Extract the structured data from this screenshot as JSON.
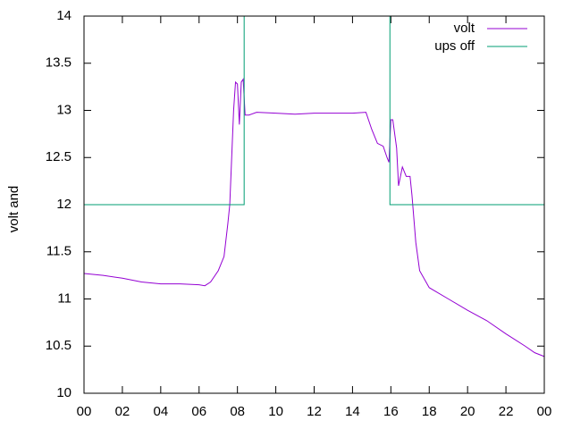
{
  "chart_data": {
    "type": "line",
    "ylabel": "volt and",
    "xlim": [
      0,
      24
    ],
    "xticks": [
      {
        "value": 0,
        "label": "00"
      },
      {
        "value": 2,
        "label": "02"
      },
      {
        "value": 4,
        "label": "04"
      },
      {
        "value": 6,
        "label": "06"
      },
      {
        "value": 8,
        "label": "08"
      },
      10,
      12,
      14,
      16,
      18,
      20,
      22,
      {
        "value": 24,
        "label": "00"
      }
    ],
    "ylim": [
      10,
      14
    ],
    "yticks": [
      10,
      10.5,
      11,
      11.5,
      12,
      12.5,
      13,
      13.5,
      14
    ],
    "legend": "top-right",
    "series": [
      {
        "name": "volt",
        "color": "#9400d3",
        "x": [
          0,
          1,
          2,
          2.5,
          3,
          4,
          5,
          6,
          6.3,
          6.6,
          7,
          7.3,
          7.5,
          7.6,
          7.7,
          7.8,
          7.9,
          8.0,
          8.1,
          8.2,
          8.3,
          8.4,
          8.6,
          9,
          10,
          11,
          12,
          13,
          14,
          14.7,
          15,
          15.3,
          15.6,
          15.8,
          15.9,
          16.0,
          16.1,
          16.3,
          16.4,
          16.6,
          16.8,
          17.0,
          17.1,
          17.3,
          17.5,
          18,
          19,
          20,
          21,
          22,
          23,
          23.5,
          24
        ],
        "values": [
          11.27,
          11.25,
          11.22,
          11.2,
          11.18,
          11.16,
          11.16,
          11.15,
          11.14,
          11.18,
          11.3,
          11.45,
          11.8,
          12.0,
          12.5,
          13.0,
          13.3,
          13.28,
          12.85,
          13.3,
          13.33,
          12.95,
          12.95,
          12.98,
          12.97,
          12.96,
          12.97,
          12.97,
          12.97,
          12.98,
          12.8,
          12.65,
          12.62,
          12.5,
          12.45,
          12.9,
          12.9,
          12.6,
          12.2,
          12.4,
          12.3,
          12.3,
          12.1,
          11.6,
          11.3,
          11.12,
          11.0,
          10.88,
          10.77,
          10.63,
          10.5,
          10.43,
          10.39
        ]
      },
      {
        "name": "ups off",
        "color": "#009e73",
        "x": [
          0,
          8.35,
          8.35,
          15.95,
          15.95,
          24
        ],
        "values": [
          12,
          12,
          14,
          14,
          12,
          12
        ]
      }
    ]
  }
}
